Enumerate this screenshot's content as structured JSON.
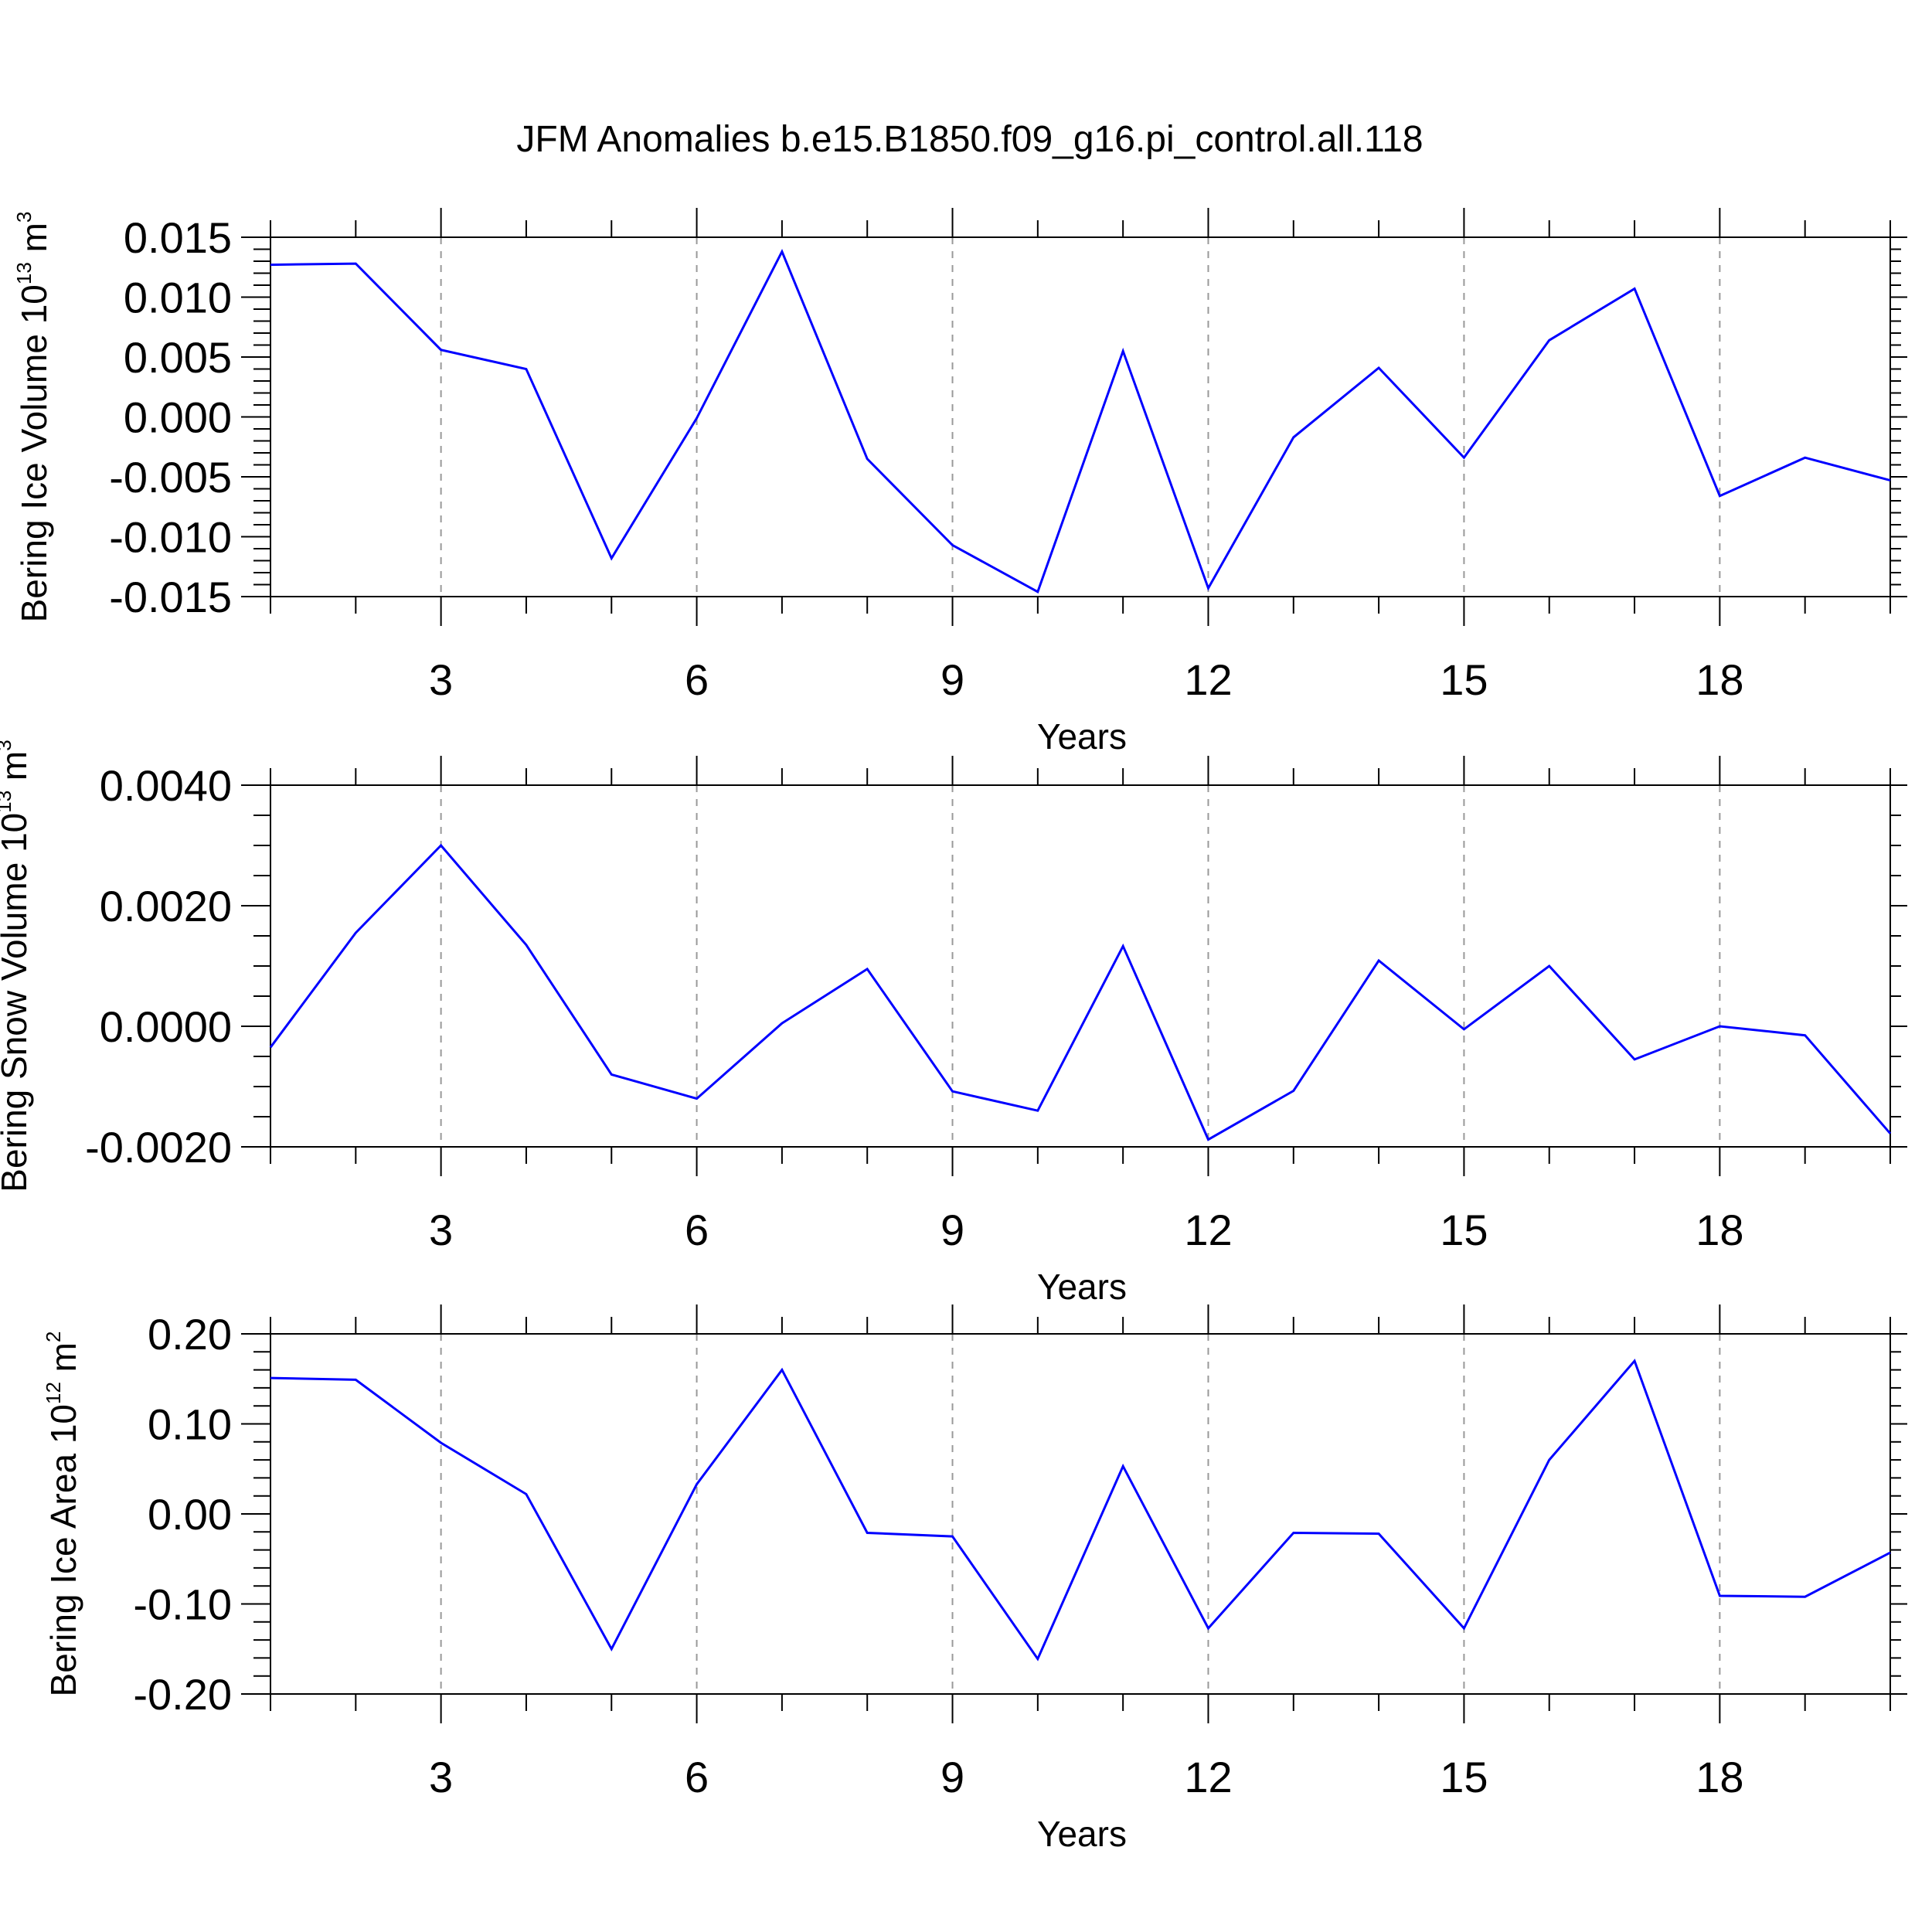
{
  "title": "JFM Anomalies b.e15.B1850.f09_g16.pi_control.all.118",
  "colors": {
    "line": "#0000ff",
    "axis": "#000000",
    "grid": "#999999"
  },
  "chart_data": [
    {
      "type": "line",
      "ylabel": "Bering Ice Volume 10",
      "ylabel_exp": "13",
      "ylabel_unit": " m",
      "ylabel_unit_exp": "3",
      "xlabel": "Years",
      "xlim": [
        1,
        20
      ],
      "ylim": [
        -0.015,
        0.015
      ],
      "xticks": [
        3,
        6,
        9,
        12,
        15,
        18
      ],
      "xtick_labels": [
        "3",
        "6",
        "9",
        "12",
        "15",
        "18"
      ],
      "yticks": [
        -0.015,
        -0.01,
        -0.005,
        0.0,
        0.005,
        0.01,
        0.015
      ],
      "ytick_labels": [
        "-0.015",
        "-0.010",
        "-0.005",
        "0.000",
        "0.005",
        "0.010",
        "0.015"
      ],
      "grid": "vertical dashed at major x ticks",
      "x": [
        1,
        2,
        3,
        4,
        5,
        6,
        7,
        8,
        9,
        10,
        11,
        12,
        13,
        14,
        15,
        16,
        17,
        18,
        19,
        20
      ],
      "series": [
        {
          "values": [
            0.0127,
            0.0128,
            0.0056,
            0.004,
            -0.0118,
            -0.0001,
            0.0138,
            -0.0035,
            -0.0107,
            -0.0146,
            0.0055,
            -0.0143,
            -0.0017,
            0.0041,
            -0.0034,
            0.0064,
            0.0107,
            -0.0066,
            -0.0034,
            -0.0053
          ]
        }
      ]
    },
    {
      "type": "line",
      "ylabel": "Bering Snow Volume 10",
      "ylabel_exp": "13",
      "ylabel_unit": " m",
      "ylabel_unit_exp": "3",
      "xlabel": "Years",
      "xlim": [
        1,
        20
      ],
      "ylim": [
        -0.002,
        0.004
      ],
      "xticks": [
        3,
        6,
        9,
        12,
        15,
        18
      ],
      "xtick_labels": [
        "3",
        "6",
        "9",
        "12",
        "15",
        "18"
      ],
      "yticks": [
        -0.002,
        0.0,
        0.002,
        0.004
      ],
      "ytick_labels": [
        "-0.0020",
        "0.0000",
        "0.0020",
        "0.0040"
      ],
      "grid": "vertical dashed at major x ticks",
      "x": [
        1,
        2,
        3,
        4,
        5,
        6,
        7,
        8,
        9,
        10,
        11,
        12,
        13,
        14,
        15,
        16,
        17,
        18,
        19,
        20
      ],
      "series": [
        {
          "values": [
            -0.00035,
            0.00155,
            0.003,
            0.00135,
            -0.0008,
            -0.0012,
            5e-05,
            0.00095,
            -0.00108,
            -0.0014,
            0.00133,
            -0.00188,
            -0.00107,
            0.00109,
            -5e-05,
            0.001,
            -0.00055,
            0.0,
            -0.00015,
            -0.00178
          ]
        }
      ]
    },
    {
      "type": "line",
      "ylabel": "Bering Ice Area 10",
      "ylabel_exp": "12",
      "ylabel_unit": " m",
      "ylabel_unit_exp": "2",
      "xlabel": "Years",
      "xlim": [
        1,
        20
      ],
      "ylim": [
        -0.2,
        0.2
      ],
      "xticks": [
        3,
        6,
        9,
        12,
        15,
        18
      ],
      "xtick_labels": [
        "3",
        "6",
        "9",
        "12",
        "15",
        "18"
      ],
      "yticks": [
        -0.2,
        -0.1,
        0.0,
        0.1,
        0.2
      ],
      "ytick_labels": [
        "-0.20",
        "-0.10",
        "0.00",
        "0.10",
        "0.20"
      ],
      "grid": "vertical dashed at major x ticks",
      "x": [
        1,
        2,
        3,
        4,
        5,
        6,
        7,
        8,
        9,
        10,
        11,
        12,
        13,
        14,
        15,
        16,
        17,
        18,
        19,
        20
      ],
      "series": [
        {
          "values": [
            0.151,
            0.149,
            0.079,
            0.022,
            -0.15,
            0.033,
            0.16,
            -0.021,
            -0.025,
            -0.161,
            0.053,
            -0.127,
            -0.021,
            -0.022,
            -0.127,
            0.06,
            0.17,
            -0.091,
            -0.092,
            -0.043
          ]
        }
      ]
    }
  ]
}
